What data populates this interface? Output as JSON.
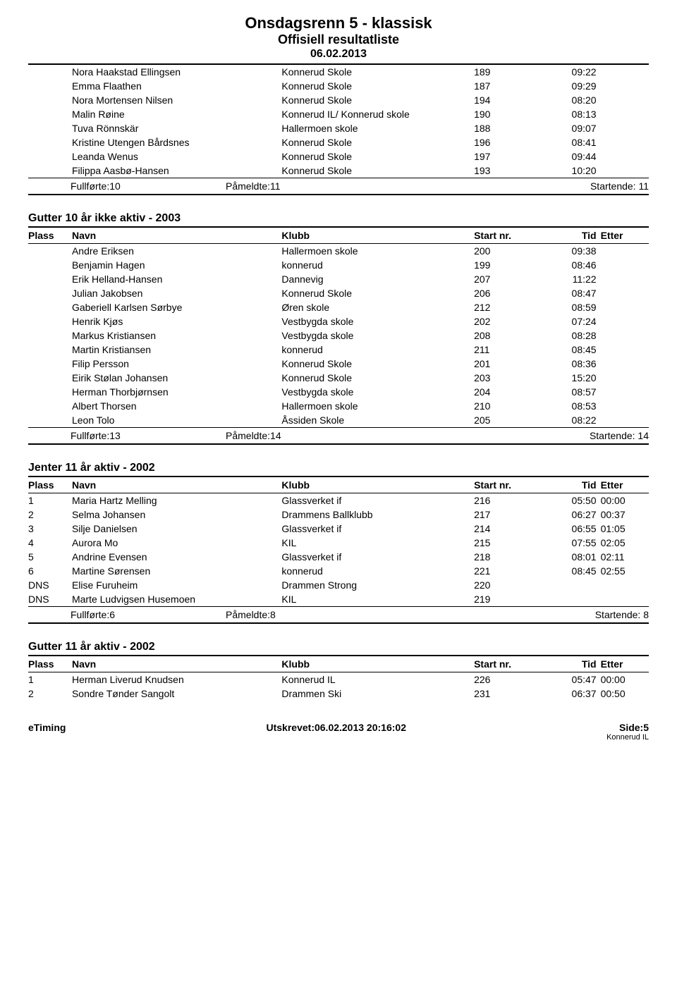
{
  "header": {
    "title": "Onsdagsrenn 5 - klassisk",
    "subtitle": "Offisiell resultatliste",
    "date": "06.02.2013"
  },
  "columns": {
    "plass": "Plass",
    "navn": "Navn",
    "klubb": "Klubb",
    "startnr": "Start nr.",
    "tid": "Tid",
    "etter": "Etter"
  },
  "section1": {
    "rows": [
      {
        "navn": "Nora Haakstad Ellingsen",
        "klubb": "Konnerud Skole",
        "start": "189",
        "tid": "09:22"
      },
      {
        "navn": "Emma Flaathen",
        "klubb": "Konnerud Skole",
        "start": "187",
        "tid": "09:29"
      },
      {
        "navn": "Nora Mortensen Nilsen",
        "klubb": "Konnerud Skole",
        "start": "194",
        "tid": "08:20"
      },
      {
        "navn": "Malin Røine",
        "klubb": "Konnerud IL/ Konnerud skole",
        "start": "190",
        "tid": "08:13"
      },
      {
        "navn": "Tuva Rönnskär",
        "klubb": "Hallermoen skole",
        "start": "188",
        "tid": "09:07"
      },
      {
        "navn": "Kristine Utengen Bårdsnes",
        "klubb": "Konnerud Skole",
        "start": "196",
        "tid": "08:41"
      },
      {
        "navn": "Leanda Wenus",
        "klubb": "Konnerud Skole",
        "start": "197",
        "tid": "09:44"
      },
      {
        "navn": "Filippa Aasbø-Hansen",
        "klubb": "Konnerud Skole",
        "start": "193",
        "tid": "10:20"
      }
    ],
    "summary": {
      "fullforte": "Fullførte:10",
      "pameldte": "Påmeldte:11",
      "startende": "Startende: 11"
    }
  },
  "section2": {
    "title": "Gutter 10 år ikke aktiv - 2003",
    "rows": [
      {
        "navn": "Andre Eriksen",
        "klubb": "Hallermoen skole",
        "start": "200",
        "tid": "09:38"
      },
      {
        "navn": "Benjamin Hagen",
        "klubb": "konnerud",
        "start": "199",
        "tid": "08:46"
      },
      {
        "navn": "Erik Helland-Hansen",
        "klubb": "Dannevig",
        "start": "207",
        "tid": "11:22"
      },
      {
        "navn": "Julian Jakobsen",
        "klubb": "Konnerud Skole",
        "start": "206",
        "tid": "08:47"
      },
      {
        "navn": "Gaberiell Karlsen Sørbye",
        "klubb": "Øren skole",
        "start": "212",
        "tid": "08:59"
      },
      {
        "navn": "Henrik Kjøs",
        "klubb": "Vestbygda skole",
        "start": "202",
        "tid": "07:24"
      },
      {
        "navn": "Markus Kristiansen",
        "klubb": "Vestbygda skole",
        "start": "208",
        "tid": "08:28"
      },
      {
        "navn": "Martin Kristiansen",
        "klubb": "konnerud",
        "start": "211",
        "tid": "08:45"
      },
      {
        "navn": "Filip Persson",
        "klubb": "Konnerud Skole",
        "start": "201",
        "tid": "08:36"
      },
      {
        "navn": "Eirik Stølan Johansen",
        "klubb": "Konnerud Skole",
        "start": "203",
        "tid": "15:20"
      },
      {
        "navn": "Herman Thorbjørnsen",
        "klubb": "Vestbygda skole",
        "start": "204",
        "tid": "08:57"
      },
      {
        "navn": "Albert Thorsen",
        "klubb": "Hallermoen skole",
        "start": "210",
        "tid": "08:53"
      },
      {
        "navn": "Leon Tolo",
        "klubb": "Åssiden Skole",
        "start": "205",
        "tid": "08:22"
      }
    ],
    "summary": {
      "fullforte": "Fullførte:13",
      "pameldte": "Påmeldte:14",
      "startende": "Startende: 14"
    }
  },
  "section3": {
    "title": "Jenter 11 år aktiv - 2002",
    "rows": [
      {
        "plass": "1",
        "navn": "Maria Hartz Melling",
        "klubb": "Glassverket if",
        "start": "216",
        "tid": "05:50",
        "etter": "00:00"
      },
      {
        "plass": "2",
        "navn": "Selma Johansen",
        "klubb": "Drammens Ballklubb",
        "start": "217",
        "tid": "06:27",
        "etter": "00:37"
      },
      {
        "plass": "3",
        "navn": "Silje Danielsen",
        "klubb": "Glassverket if",
        "start": "214",
        "tid": "06:55",
        "etter": "01:05"
      },
      {
        "plass": "4",
        "navn": "Aurora Mo",
        "klubb": "KIL",
        "start": "215",
        "tid": "07:55",
        "etter": "02:05"
      },
      {
        "plass": "5",
        "navn": "Andrine Evensen",
        "klubb": "Glassverket if",
        "start": "218",
        "tid": "08:01",
        "etter": "02:11"
      },
      {
        "plass": "6",
        "navn": "Martine Sørensen",
        "klubb": "konnerud",
        "start": "221",
        "tid": "08:45",
        "etter": "02:55"
      },
      {
        "plass": "DNS",
        "navn": "Elise Furuheim",
        "klubb": "Drammen Strong",
        "start": "220",
        "tid": "",
        "etter": ""
      },
      {
        "plass": "DNS",
        "navn": "Marte Ludvigsen Husemoen",
        "klubb": "KIL",
        "start": "219",
        "tid": "",
        "etter": ""
      }
    ],
    "summary": {
      "fullforte": "Fullførte:6",
      "pameldte": "Påmeldte:8",
      "startende": "Startende: 8"
    }
  },
  "section4": {
    "title": "Gutter 11 år aktiv - 2002",
    "rows": [
      {
        "plass": "1",
        "navn": "Herman Liverud Knudsen",
        "klubb": "Konnerud IL",
        "start": "226",
        "tid": "05:47",
        "etter": "00:00"
      },
      {
        "plass": "2",
        "navn": "Sondre Tønder Sangolt",
        "klubb": "Drammen Ski",
        "start": "231",
        "tid": "06:37",
        "etter": "00:50"
      }
    ]
  },
  "footer": {
    "left": "eTiming",
    "center": "Utskrevet:06.02.2013 20:16:02",
    "right": "Side:5",
    "rightsub": "Konnerud IL"
  }
}
